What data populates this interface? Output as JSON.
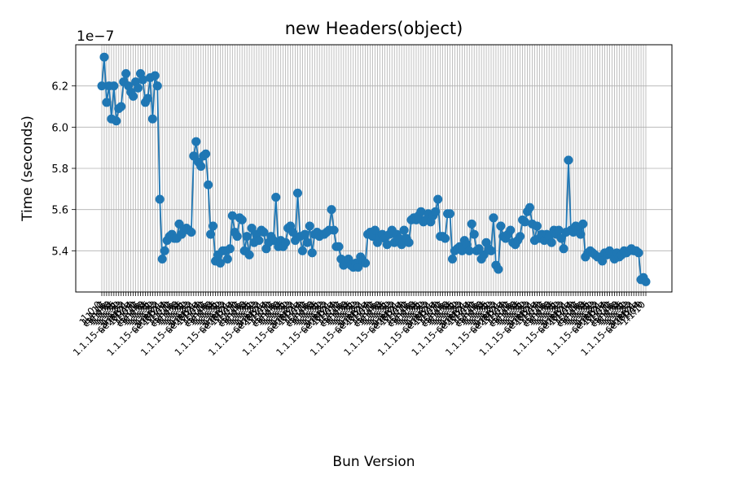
{
  "chart_data": {
    "type": "line",
    "title": "new Headers(object)",
    "xlabel": "Bun Version",
    "ylabel": "Time (seconds)",
    "y_offset_label": "1e−7",
    "y_ticks": [
      "5.4",
      "5.6",
      "5.8",
      "6.0",
      "6.2"
    ],
    "y_tick_values": [
      5.4,
      5.6,
      5.8,
      6.0,
      6.2
    ],
    "ylim": [
      5.2,
      6.4
    ],
    "grid": true,
    "legend": "none",
    "marker": "circle",
    "color": "#1f77b4",
    "x_tick_labels_visible": [
      "1.0.0",
      "1.1.10",
      "1.1.15",
      "canary",
      "1.1.38",
      "1.1.34",
      "1.1.35",
      "1.1.31",
      "1.1.32",
      "1.1.33",
      "1.1.22",
      "1.1.15-canary.1",
      "ae28b2e",
      "1.1.14"
    ],
    "values": [
      6.2,
      6.34,
      6.12,
      6.2,
      6.04,
      6.2,
      6.03,
      6.09,
      6.1,
      6.22,
      6.26,
      6.2,
      6.17,
      6.15,
      6.22,
      6.19,
      6.26,
      6.23,
      6.12,
      6.14,
      6.24,
      6.04,
      6.25,
      6.2,
      5.65,
      5.36,
      5.4,
      5.45,
      5.47,
      5.48,
      5.46,
      5.46,
      5.53,
      5.48,
      5.5,
      5.51,
      5.5,
      5.49,
      5.86,
      5.93,
      5.83,
      5.81,
      5.86,
      5.87,
      5.72,
      5.48,
      5.52,
      5.35,
      5.38,
      5.34,
      5.4,
      5.4,
      5.36,
      5.41,
      5.57,
      5.49,
      5.47,
      5.56,
      5.55,
      5.4,
      5.47,
      5.38,
      5.51,
      5.44,
      5.48,
      5.45,
      5.5,
      5.49,
      5.41,
      5.44,
      5.47,
      5.45,
      5.66,
      5.42,
      5.45,
      5.42,
      5.44,
      5.51,
      5.52,
      5.49,
      5.45,
      5.68,
      5.47,
      5.4,
      5.48,
      5.44,
      5.52,
      5.39,
      5.48,
      5.49,
      5.47,
      5.48,
      5.48,
      5.49,
      5.5,
      5.6,
      5.5,
      5.42,
      5.42,
      5.36,
      5.33,
      5.35,
      5.36,
      5.33,
      5.32,
      5.34,
      5.32,
      5.37,
      5.35,
      5.34,
      5.48,
      5.49,
      5.47,
      5.5,
      5.44,
      5.47,
      5.48,
      5.46,
      5.43,
      5.48,
      5.5,
      5.44,
      5.48,
      5.46,
      5.43,
      5.5,
      5.46,
      5.44,
      5.55,
      5.56,
      5.55,
      5.57,
      5.59,
      5.54,
      5.55,
      5.58,
      5.54,
      5.57,
      5.59,
      5.65,
      5.47,
      5.47,
      5.46,
      5.58,
      5.58,
      5.36,
      5.4,
      5.41,
      5.42,
      5.4,
      5.45,
      5.43,
      5.4,
      5.53,
      5.48,
      5.4,
      5.41,
      5.36,
      5.38,
      5.44,
      5.41,
      5.4,
      5.56,
      5.33,
      5.31,
      5.52,
      5.47,
      5.46,
      5.48,
      5.5,
      5.44,
      5.43,
      5.45,
      5.47,
      5.55,
      5.54,
      5.59,
      5.61,
      5.53,
      5.45,
      5.52,
      5.46,
      5.48,
      5.45,
      5.48,
      5.47,
      5.44,
      5.5,
      5.48,
      5.5,
      5.46,
      5.41,
      5.49,
      5.84,
      5.5,
      5.49,
      5.52,
      5.5,
      5.48,
      5.53,
      5.37,
      5.39,
      5.4,
      5.39,
      5.38,
      5.37,
      5.37,
      5.35,
      5.39,
      5.38,
      5.4,
      5.38,
      5.36,
      5.39,
      5.37,
      5.38,
      5.4,
      5.39,
      5.4,
      5.41,
      5.4,
      5.4,
      5.39,
      5.26,
      5.27,
      5.25
    ]
  }
}
